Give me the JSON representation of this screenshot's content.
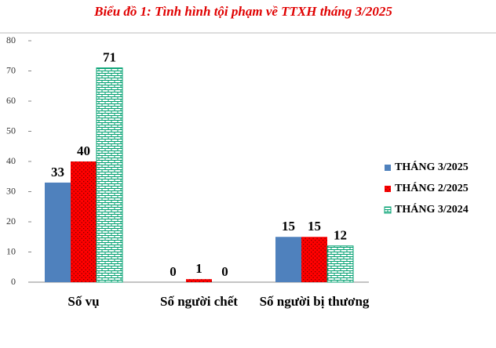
{
  "chart_data": {
    "type": "bar",
    "title": "Biểu đồ 1: Tình hình tội phạm về TTXH tháng 3/2025",
    "categories": [
      "Số vụ",
      "Số người chết",
      "Số người bị thương"
    ],
    "series": [
      {
        "name": "THÁNG 3/2025",
        "color": "#4f81bd",
        "values": [
          33,
          0,
          15
        ]
      },
      {
        "name": "THÁNG 2/2025",
        "color": "#ff0000",
        "values": [
          40,
          1,
          15
        ]
      },
      {
        "name": "THÁNG 3/2024",
        "color": "#00a070",
        "values": [
          71,
          0,
          12
        ]
      }
    ],
    "ylim": [
      0,
      80
    ],
    "yticks": [
      0,
      10,
      20,
      30,
      40,
      50,
      60,
      70,
      80
    ],
    "legend": "right"
  }
}
